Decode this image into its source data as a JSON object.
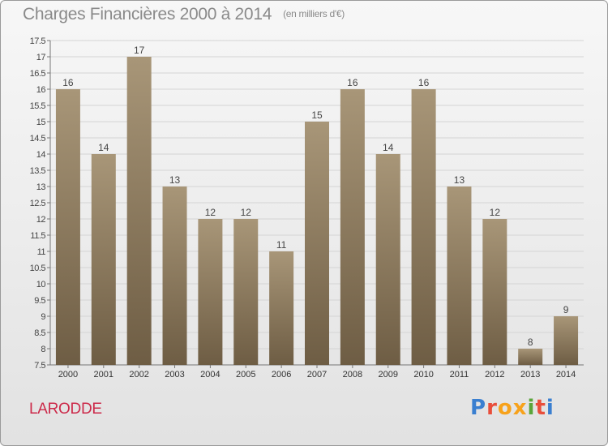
{
  "header": {
    "title": "Charges Financières 2000 à 2014",
    "unit": "(en milliers d'€)"
  },
  "footer": {
    "commune": "LARODDE",
    "logo": "Proxiti",
    "logo_colors": [
      "#3a7fd0",
      "#e94e3b",
      "#f7a21b",
      "#f7a21b",
      "#5aa53a",
      "#e94e3b",
      "#3a7fd0"
    ]
  },
  "chart_data": {
    "type": "bar",
    "title": "Charges Financières 2000 à 2014",
    "subtitle": "(en milliers d'€)",
    "categories": [
      "2000",
      "2001",
      "2002",
      "2003",
      "2004",
      "2005",
      "2006",
      "2007",
      "2008",
      "2009",
      "2010",
      "2011",
      "2012",
      "2013",
      "2014"
    ],
    "values": [
      16,
      14,
      17,
      13,
      12,
      12,
      11,
      15,
      16,
      14,
      16,
      13,
      12,
      8,
      9
    ],
    "ylim": [
      7.5,
      17.5
    ],
    "yticks": [
      "7.5",
      "8",
      "8.5",
      "9",
      "9.5",
      "10",
      "10.5",
      "11",
      "11.5",
      "12",
      "12.5",
      "13",
      "13.5",
      "14",
      "14.5",
      "15",
      "15.5",
      "16",
      "16.5",
      "17",
      "17.5"
    ],
    "grid": true,
    "bar_color_top": "#a89678",
    "bar_color_bottom": "#6e5d44"
  }
}
